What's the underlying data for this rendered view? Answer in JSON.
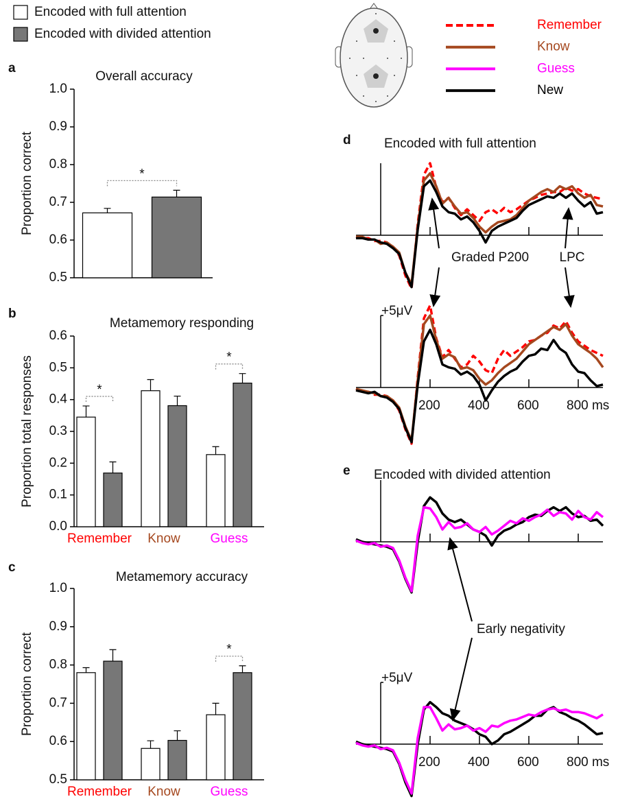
{
  "legend": [
    {
      "name": "Encoded with full attention",
      "color": "#ffffff"
    },
    {
      "name": "Encoded with divided attention",
      "color": "#777777"
    }
  ],
  "erp_legend": [
    {
      "name": "Remember",
      "color": "#ff0000",
      "dash": true
    },
    {
      "name": "Know",
      "color": "#a5481f",
      "dash": false
    },
    {
      "name": "Guess",
      "color": "#ff00ff",
      "dash": false
    },
    {
      "name": "New",
      "color": "#000000",
      "dash": false
    }
  ],
  "annotations": {
    "p200": "Graded P200",
    "lpc": "LPC",
    "early": "Early negativity"
  },
  "chart_data": [
    {
      "type": "bar",
      "panel": "a",
      "title": "Overall accuracy",
      "ylabel": "Proportion correct",
      "ylim": [
        0.5,
        1
      ],
      "yticks": [
        0.5,
        0.6,
        0.7,
        0.8,
        0.9,
        {
          "value": 1,
          "label": "1.0"
        }
      ],
      "series": [
        {
          "color": "#ffffff",
          "values": [
            0.672
          ],
          "errors": [
            0.012
          ]
        },
        {
          "color": "#777777",
          "values": [
            0.714
          ],
          "errors": [
            0.018
          ]
        }
      ],
      "significance": [
        "*"
      ]
    },
    {
      "type": "bar",
      "panel": "b",
      "title": "Metamemory responding",
      "ylabel": "Proportion total responses",
      "categories": [
        "Remember",
        "Know",
        "Guess"
      ],
      "category_colors": [
        "#ff0000",
        "#a5481f",
        "#ff00ff"
      ],
      "ylim": [
        0,
        0.6
      ],
      "yticks": [
        {
          "value": 0,
          "label": "0.0"
        },
        0.1,
        0.2,
        0.3,
        0.4,
        0.5,
        0.6
      ],
      "series": [
        {
          "color": "#ffffff",
          "values": [
            0.345,
            0.428,
            0.227
          ],
          "errors": [
            0.035,
            0.035,
            0.025
          ]
        },
        {
          "color": "#777777",
          "values": [
            0.169,
            0.381,
            0.452
          ],
          "errors": [
            0.035,
            0.03,
            0.03
          ]
        }
      ],
      "significance": [
        "*",
        null,
        "*"
      ]
    },
    {
      "type": "bar",
      "panel": "c",
      "title": "Metamemory accuracy",
      "ylabel": "Proportion correct",
      "categories": [
        "Remember",
        "Know",
        "Guess"
      ],
      "category_colors": [
        "#ff0000",
        "#a5481f",
        "#ff00ff"
      ],
      "ylim": [
        0.5,
        1
      ],
      "yticks": [
        0.5,
        0.6,
        0.7,
        0.8,
        0.9,
        {
          "value": 1,
          "label": "1.0"
        }
      ],
      "series": [
        {
          "color": "#ffffff",
          "values": [
            0.78,
            0.582,
            0.67
          ],
          "errors": [
            0.013,
            0.02,
            0.03
          ]
        },
        {
          "color": "#777777",
          "values": [
            0.81,
            0.603,
            0.78
          ],
          "errors": [
            0.03,
            0.025,
            0.018
          ]
        }
      ],
      "significance": [
        null,
        null,
        "*"
      ]
    },
    {
      "type": "line",
      "panel": "d",
      "title": "Encoded with full attention",
      "xlim": [
        -100,
        900
      ],
      "xticks": [
        200,
        400,
        600,
        800
      ],
      "xtick_labels": false,
      "ylim": [
        -4.5,
        5
      ],
      "x": [
        -100,
        -75,
        -50,
        -25,
        0,
        25,
        50,
        75,
        100,
        125,
        150,
        175,
        200,
        225,
        250,
        275,
        300,
        325,
        350,
        375,
        400,
        425,
        450,
        475,
        500,
        525,
        550,
        575,
        600,
        625,
        650,
        675,
        700,
        725,
        750,
        775,
        800,
        825,
        850,
        875,
        900
      ],
      "series": [
        {
          "color": "#ff0000",
          "dash": true,
          "values": [
            -0.1,
            -0.2,
            -0.2,
            -0.4,
            -0.4,
            -0.5,
            -0.8,
            -1.4,
            -2.8,
            -3.7,
            0.8,
            4.2,
            5.0,
            3.3,
            2.3,
            2.6,
            1.9,
            1.4,
            1.8,
            1.4,
            1.0,
            1.6,
            1.8,
            1.5,
            1.9,
            1.6,
            1.8,
            2.1,
            2.4,
            2.6,
            2.8,
            2.9,
            3.0,
            3.0,
            3.3,
            3.1,
            3.2,
            2.9,
            2.7,
            2.6,
            2.5
          ]
        },
        {
          "color": "#a5481f",
          "dash": false,
          "values": [
            -0.1,
            -0.1,
            -0.3,
            -0.3,
            -0.6,
            -0.5,
            -0.8,
            -1.2,
            -2.6,
            -3.4,
            0.6,
            3.8,
            4.3,
            3.4,
            2.2,
            2.6,
            2.0,
            1.5,
            1.6,
            1.2,
            0.6,
            0.2,
            0.6,
            0.9,
            1.0,
            1.1,
            1.4,
            1.9,
            2.4,
            2.7,
            3.0,
            3.2,
            3.0,
            3.4,
            3.2,
            3.4,
            2.9,
            2.6,
            2.8,
            2.1,
            2.0
          ]
        },
        {
          "color": "#000000",
          "dash": false,
          "values": [
            -0.2,
            -0.2,
            -0.3,
            -0.3,
            -0.5,
            -0.6,
            -0.9,
            -1.3,
            -2.6,
            -3.6,
            0.4,
            3.4,
            3.8,
            3.0,
            2.0,
            1.6,
            1.5,
            1.1,
            1.3,
            0.9,
            0.3,
            -0.5,
            0.3,
            0.6,
            0.8,
            1.0,
            1.2,
            1.7,
            2.1,
            2.3,
            2.5,
            2.7,
            2.6,
            2.9,
            2.6,
            2.9,
            2.4,
            2.0,
            2.3,
            1.5,
            1.6
          ]
        }
      ]
    },
    {
      "type": "line",
      "xlim": [
        -100,
        900
      ],
      "xticks": [
        200,
        400,
        600,
        {
          "value": 800,
          "label": "800 ms"
        }
      ],
      "ylim": [
        -4.5,
        5
      ],
      "yticks": [
        {
          "value": 5,
          "label": "+5μV"
        }
      ],
      "x": [
        -100,
        -75,
        -50,
        -25,
        0,
        25,
        50,
        75,
        100,
        125,
        150,
        175,
        200,
        225,
        250,
        275,
        300,
        325,
        350,
        375,
        400,
        425,
        450,
        475,
        500,
        525,
        550,
        575,
        600,
        625,
        650,
        675,
        700,
        725,
        750,
        775,
        800,
        825,
        850,
        875,
        900
      ],
      "series": [
        {
          "color": "#ff0000",
          "dash": true,
          "values": [
            -0.1,
            -0.3,
            -0.3,
            -0.5,
            -0.5,
            -0.6,
            -0.9,
            -1.6,
            -2.9,
            -3.9,
            0.7,
            4.8,
            5.7,
            3.4,
            2.1,
            2.6,
            2.0,
            1.4,
            1.6,
            2.2,
            1.8,
            1.2,
            1.0,
            2.0,
            2.6,
            2.2,
            2.5,
            2.8,
            3.2,
            3.3,
            3.6,
            3.8,
            4.3,
            4.1,
            4.6,
            3.8,
            3.2,
            2.9,
            2.6,
            2.4,
            2.2
          ]
        },
        {
          "color": "#a5481f",
          "dash": false,
          "values": [
            -0.1,
            -0.2,
            -0.3,
            -0.4,
            -0.6,
            -0.6,
            -0.9,
            -1.4,
            -2.7,
            -3.7,
            0.5,
            4.4,
            5.0,
            3.3,
            2.0,
            2.3,
            2.1,
            1.3,
            1.4,
            1.2,
            0.6,
            0.2,
            0.5,
            1.0,
            1.4,
            1.7,
            2.0,
            2.5,
            3.0,
            3.3,
            3.6,
            3.9,
            4.2,
            4.0,
            4.4,
            3.6,
            3.0,
            2.7,
            2.4,
            2.0,
            1.4
          ]
        },
        {
          "color": "#000000",
          "dash": false,
          "values": [
            -0.2,
            -0.3,
            -0.4,
            -0.3,
            -0.6,
            -0.7,
            -1.0,
            -1.5,
            -2.8,
            -3.8,
            0.2,
            3.2,
            4.0,
            3.0,
            1.6,
            1.4,
            1.3,
            0.9,
            1.1,
            0.8,
            0.2,
            -0.9,
            -0.2,
            0.4,
            0.8,
            1.1,
            1.3,
            1.8,
            2.2,
            2.3,
            2.7,
            2.6,
            3.3,
            2.7,
            2.4,
            1.6,
            1.1,
            1.0,
            0.5,
            0.1,
            0.2
          ]
        }
      ]
    },
    {
      "type": "line",
      "panel": "e",
      "title": "Encoded with divided attention",
      "xlim": [
        -100,
        900
      ],
      "xticks": [
        200,
        400,
        600,
        800
      ],
      "xtick_labels": false,
      "ylim": [
        -4.5,
        5
      ],
      "x": [
        -100,
        -75,
        -50,
        -25,
        0,
        25,
        50,
        75,
        100,
        125,
        150,
        175,
        200,
        225,
        250,
        275,
        300,
        325,
        350,
        375,
        400,
        425,
        450,
        475,
        500,
        525,
        550,
        575,
        600,
        625,
        650,
        675,
        700,
        725,
        750,
        775,
        800,
        825,
        850,
        875,
        900
      ],
      "series": [
        {
          "color": "#000000",
          "dash": false,
          "values": [
            0.2,
            0.0,
            -0.1,
            -0.2,
            -0.3,
            -0.4,
            -0.6,
            -1.6,
            -3.0,
            -4.1,
            0.0,
            2.9,
            3.6,
            3.2,
            2.3,
            1.8,
            1.6,
            1.8,
            1.4,
            1.0,
            0.8,
            0.5,
            -0.3,
            0.5,
            0.9,
            1.1,
            1.4,
            1.6,
            2.0,
            2.2,
            2.1,
            2.5,
            2.8,
            2.5,
            2.8,
            2.3,
            2.0,
            2.1,
            1.7,
            1.8,
            1.3
          ]
        },
        {
          "color": "#ff00ff",
          "dash": false,
          "values": [
            0.1,
            -0.1,
            -0.2,
            -0.1,
            -0.4,
            -0.3,
            -0.5,
            -1.5,
            -2.9,
            -4.0,
            0.5,
            2.8,
            2.7,
            2.0,
            1.0,
            1.6,
            1.1,
            1.2,
            1.5,
            1.0,
            0.8,
            1.2,
            0.6,
            0.9,
            1.3,
            1.7,
            1.5,
            1.9,
            1.7,
            2.0,
            2.2,
            2.6,
            2.1,
            2.4,
            2.3,
            1.8,
            2.5,
            2.0,
            1.8,
            2.4,
            2.0
          ]
        }
      ]
    },
    {
      "type": "line",
      "xlim": [
        -100,
        900
      ],
      "xticks": [
        200,
        400,
        600,
        {
          "value": 800,
          "label": "800 ms"
        }
      ],
      "ylim": [
        -4.5,
        5
      ],
      "yticks": [
        {
          "value": 5,
          "label": "+5μV"
        }
      ],
      "x": [
        -100,
        -75,
        -50,
        -25,
        0,
        25,
        50,
        75,
        100,
        125,
        150,
        175,
        200,
        225,
        250,
        275,
        300,
        325,
        350,
        375,
        400,
        425,
        450,
        475,
        500,
        525,
        550,
        575,
        600,
        625,
        650,
        675,
        700,
        725,
        750,
        775,
        800,
        825,
        850,
        875,
        900
      ],
      "series": [
        {
          "color": "#000000",
          "dash": false,
          "values": [
            0.2,
            0.0,
            -0.1,
            -0.2,
            -0.3,
            -0.4,
            -0.6,
            -1.6,
            -3.1,
            -4.2,
            0.0,
            2.8,
            3.4,
            3.0,
            2.5,
            2.3,
            1.9,
            1.7,
            1.5,
            1.2,
            0.8,
            0.6,
            0.0,
            0.3,
            0.8,
            1.0,
            1.3,
            1.6,
            1.9,
            2.3,
            2.3,
            2.8,
            3.0,
            2.6,
            2.4,
            2.1,
            1.9,
            1.6,
            1.2,
            0.8,
            0.9
          ]
        },
        {
          "color": "#ff00ff",
          "dash": false,
          "values": [
            0.1,
            -0.1,
            -0.2,
            -0.1,
            -0.4,
            -0.3,
            -0.5,
            -1.5,
            -2.9,
            -4.0,
            0.5,
            3.0,
            3.0,
            2.1,
            1.1,
            1.6,
            1.2,
            1.3,
            1.5,
            1.1,
            1.3,
            1.0,
            1.5,
            1.4,
            1.7,
            1.9,
            2.0,
            2.2,
            2.4,
            2.3,
            2.6,
            2.8,
            2.9,
            2.7,
            2.8,
            2.6,
            2.6,
            2.5,
            2.3,
            2.1,
            2.4
          ]
        }
      ]
    }
  ]
}
